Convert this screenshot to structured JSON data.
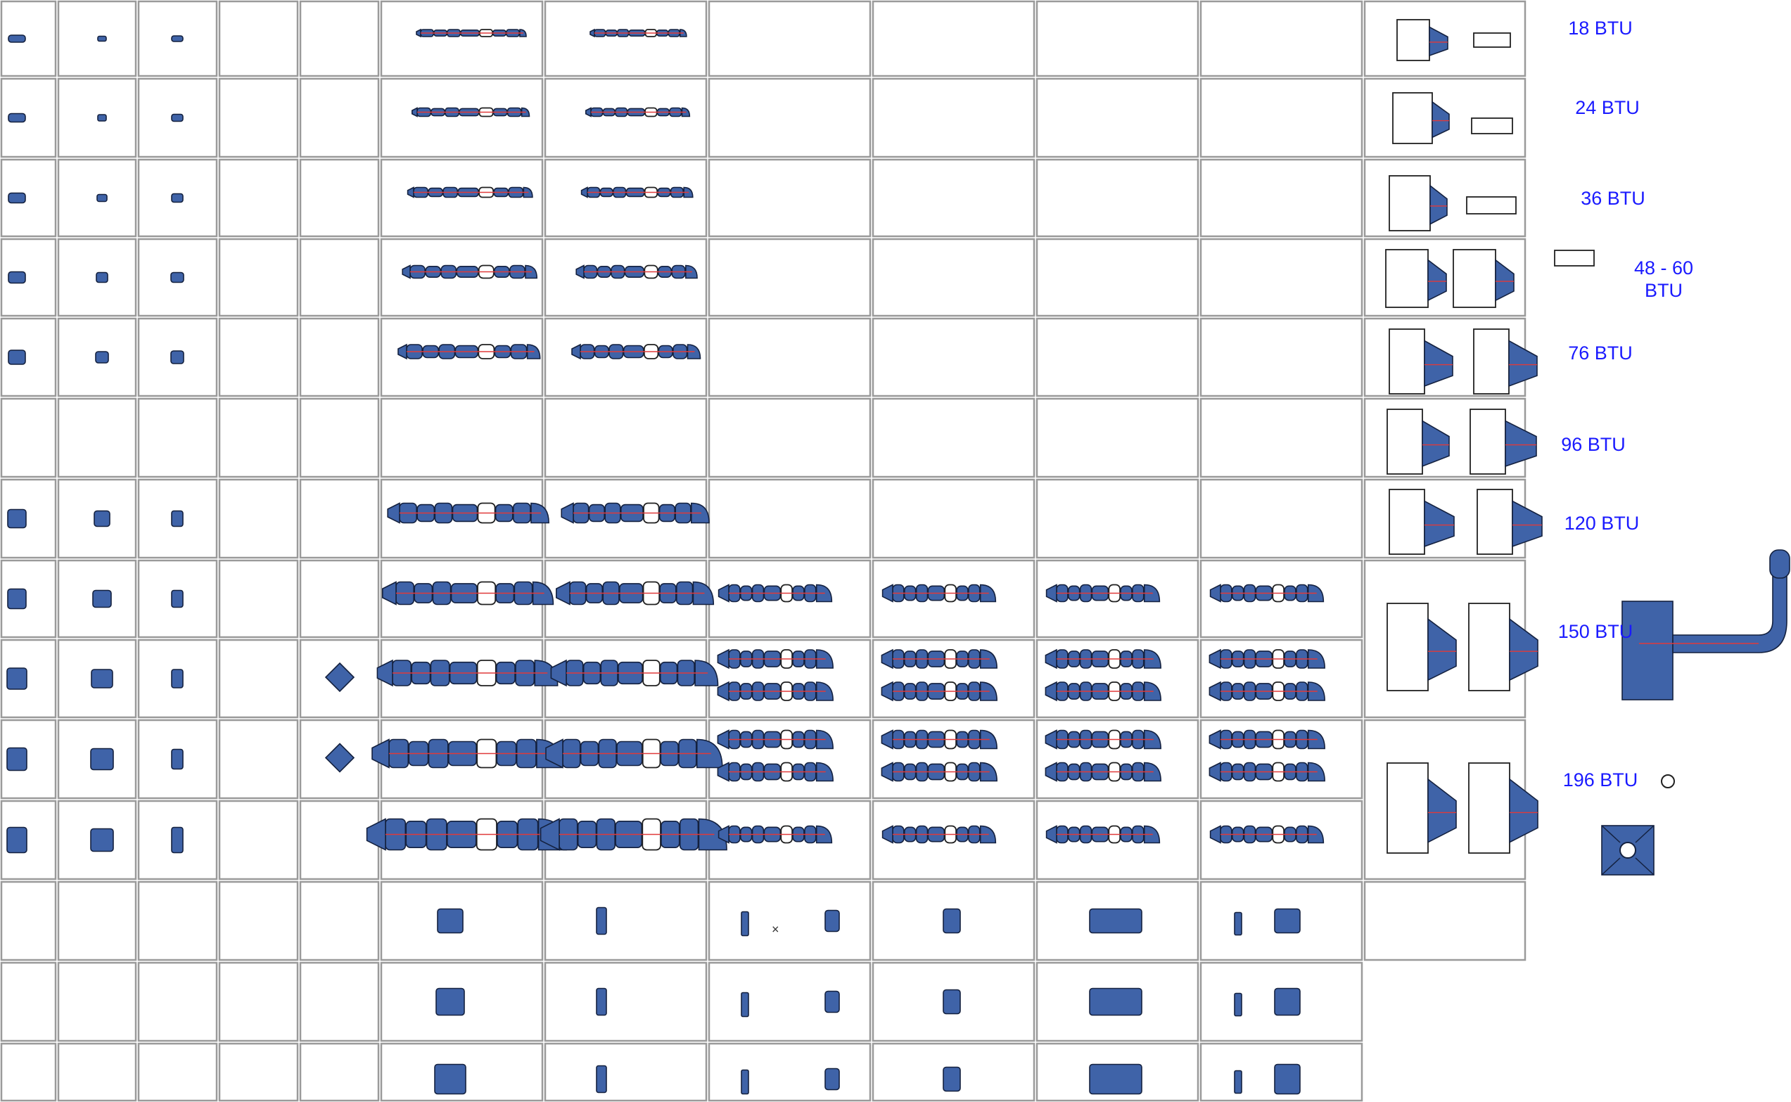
{
  "schedule": {
    "row_labels": [
      "18 BTU",
      "24 BTU",
      "36 BTU",
      "48 - 60\nBTU",
      "76 BTU",
      "96 BTU",
      "120 BTU",
      "150 BTU",
      "196 BTU"
    ],
    "symbol_fill": "#3f63a8",
    "symbol_outline": "#14213f",
    "centerline_color": "#e03a3a",
    "label_color": "#1a1aff",
    "grid_line_color": "#9a9a9a",
    "symbol_icons": [
      "duct-run-icon",
      "duct-elbow-icon",
      "fan-coil-unit-icon",
      "diffuser-square-icon",
      "round-outlet-icon"
    ]
  }
}
